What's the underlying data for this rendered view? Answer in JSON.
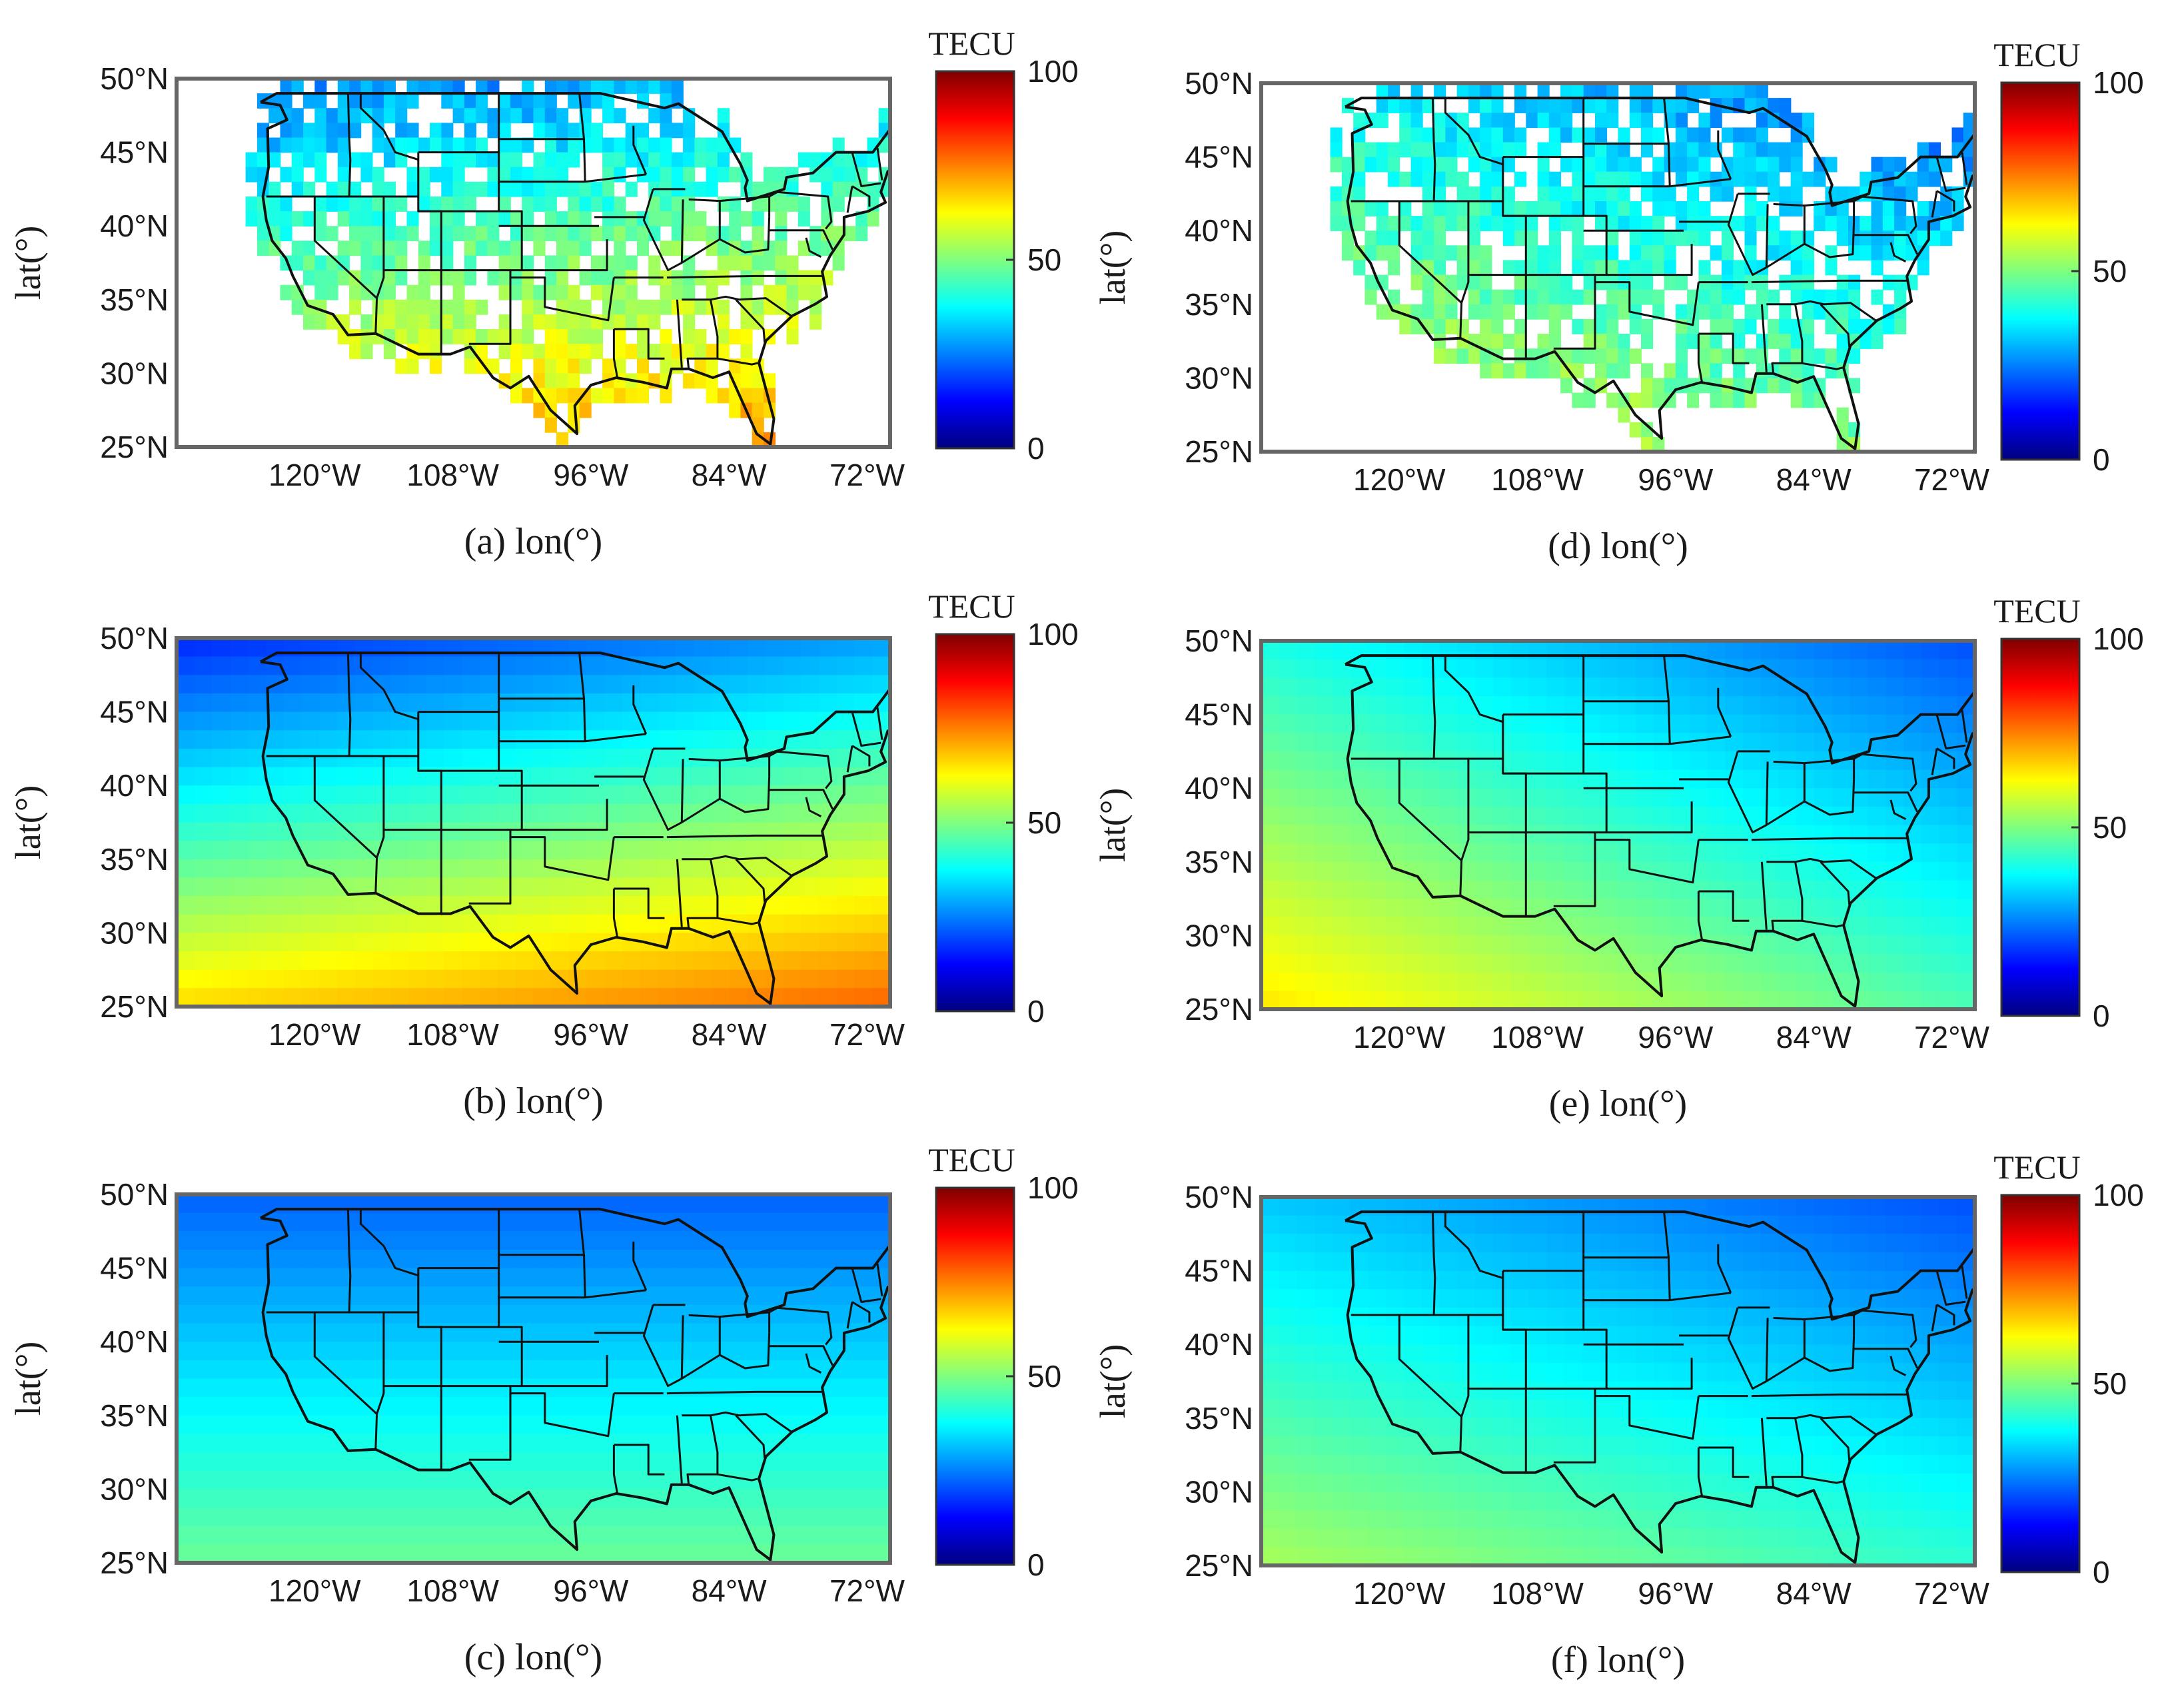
{
  "figure": {
    "y_axis_label": "lat(°)",
    "x_caption_suffix": "lon(°)",
    "colorbar": {
      "title": "TECU",
      "min": 0,
      "max": 100,
      "ticks": [
        "100",
        "50",
        "0"
      ]
    },
    "lat_ticks": [
      "50°N",
      "45°N",
      "40°N",
      "35°N",
      "30°N",
      "25°N"
    ],
    "lon_ticks": [
      "120°W",
      "108°W",
      "96°W",
      "84°W",
      "72°W"
    ],
    "colors": {
      "stops": [
        "#00007f",
        "#0000ff",
        "#007fff",
        "#00ffff",
        "#7fff7f",
        "#ffff00",
        "#ff7f00",
        "#ff0000",
        "#7f0000"
      ]
    }
  },
  "chart_data": [
    {
      "type": "heatmap",
      "panel": "(a)",
      "caption": "(a) lon(°)",
      "xlabel": "lon(°)",
      "ylabel": "lat(°)",
      "xlim": [
        -132,
        -70
      ],
      "ylim": [
        25,
        50
      ],
      "clim": [
        0,
        100
      ],
      "field": "observed_sparse",
      "tec_north": 28,
      "tec_south": 70,
      "tec_west_bias": -4,
      "coverage": "sparse"
    },
    {
      "type": "heatmap",
      "panel": "(b)",
      "caption": "(b) lon(°)",
      "xlabel": "lon(°)",
      "ylabel": "lat(°)",
      "xlim": [
        -132,
        -70
      ],
      "ylim": [
        25,
        50
      ],
      "clim": [
        0,
        100
      ],
      "field": "model",
      "tec_north": 22,
      "tec_south": 72,
      "tec_west_bias": -6,
      "coverage": "full"
    },
    {
      "type": "heatmap",
      "panel": "(c)",
      "caption": "(c) lon(°)",
      "xlabel": "lon(°)",
      "ylabel": "lat(°)",
      "xlim": [
        -132,
        -70
      ],
      "ylim": [
        25,
        50
      ],
      "clim": [
        0,
        100
      ],
      "field": "model",
      "tec_north": 22,
      "tec_south": 48,
      "tec_west_bias": 0,
      "coverage": "full"
    },
    {
      "type": "heatmap",
      "panel": "(d)",
      "caption": "(d) lon(°)",
      "xlabel": "lon(°)",
      "ylabel": "lat(°)",
      "xlim": [
        -132,
        -70
      ],
      "ylim": [
        25,
        50
      ],
      "clim": [
        0,
        100
      ],
      "field": "observed_sparse",
      "tec_north": 30,
      "tec_south": 55,
      "tec_west_bias": 8,
      "coverage": "sparse"
    },
    {
      "type": "heatmap",
      "panel": "(e)",
      "caption": "(e) lon(°)",
      "xlabel": "lon(°)",
      "ylabel": "lat(°)",
      "xlim": [
        -132,
        -70
      ],
      "ylim": [
        25,
        50
      ],
      "clim": [
        0,
        100
      ],
      "field": "model",
      "tec_north": 30,
      "tec_south": 55,
      "tec_west_bias": 10,
      "coverage": "full"
    },
    {
      "type": "heatmap",
      "panel": "(f)",
      "caption": "(f) lon(°)",
      "xlabel": "lon(°)",
      "ylabel": "lat(°)",
      "xlim": [
        -132,
        -70
      ],
      "ylim": [
        25,
        50
      ],
      "clim": [
        0,
        100
      ],
      "field": "model",
      "tec_north": 26,
      "tec_south": 48,
      "tec_west_bias": 6,
      "coverage": "full"
    }
  ]
}
